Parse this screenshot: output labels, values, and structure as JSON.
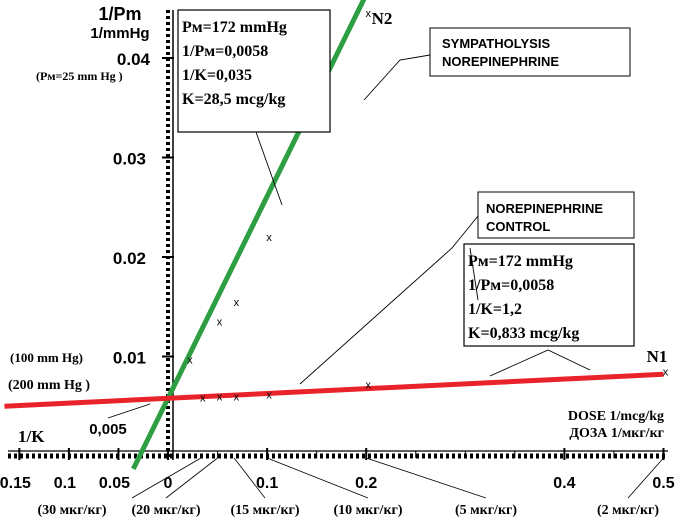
{
  "chart_data": {
    "type": "line",
    "title": "",
    "ylabel": "1/Pm",
    "ylabel_unit": "1/mmHg",
    "xlabel": "1/K",
    "xlabel_right": [
      "DOSE 1/mcg/kg",
      "ДОЗА 1/мкг/кг"
    ],
    "xlim": [
      -0.15,
      0.5
    ],
    "ylim": [
      0,
      0.045
    ],
    "x_ticks": [
      {
        "value": -0.15,
        "label": "0.15"
      },
      {
        "value": -0.1,
        "label": "0.1"
      },
      {
        "value": -0.05,
        "label": "0.05"
      },
      {
        "value": 0,
        "label": "0"
      },
      {
        "value": 0.1,
        "label": "0.1"
      },
      {
        "value": 0.2,
        "label": "0.2"
      },
      {
        "value": 0.4,
        "label": "0.4"
      },
      {
        "value": 0.5,
        "label": "0.5"
      }
    ],
    "y_ticks": [
      {
        "value": 0.01,
        "label": "0.01"
      },
      {
        "value": 0.02,
        "label": "0.02"
      },
      {
        "value": 0.03,
        "label": "0.03"
      },
      {
        "value": 0.04,
        "label": "0.04"
      }
    ],
    "y_extra_labels": [
      {
        "value": 0.0058,
        "label": "0,005"
      },
      {
        "value": 0.04,
        "label": "(Pм=25 mm Hg )"
      },
      {
        "value": 0.01,
        "label": "(100 mm Hg)"
      },
      {
        "value": 0.005,
        "label": "(200 mm Hg )"
      }
    ],
    "dose_labels": [
      {
        "x": 0.0333,
        "label": "(30 мкг/кг)"
      },
      {
        "x": 0.05,
        "label": "(20 мкг/кг)"
      },
      {
        "x": 0.0667,
        "label": "(15 мкг/кг)"
      },
      {
        "x": 0.1,
        "label": "(10 мкг/кг)"
      },
      {
        "x": 0.2,
        "label": "(5 мкг/кг)"
      },
      {
        "x": 0.5,
        "label": "(2 мкг/кг)"
      }
    ],
    "series": [
      {
        "name": "N2",
        "label": [
          "SYMPATHOLYSIS",
          "NOREPINEPHRINE"
        ],
        "color": "#2e9e43",
        "x_range": [
          -0.035,
          0.24
        ],
        "intercept": 0.0058,
        "slope": 0.2029,
        "points": [
          {
            "x": 0.02,
            "y": 0.0097
          },
          {
            "x": 0.05,
            "y": 0.0135
          },
          {
            "x": 0.067,
            "y": 0.0155
          },
          {
            "x": 0.1,
            "y": 0.022
          },
          {
            "x": 0.2,
            "y": 0.0445
          }
        ],
        "info": [
          "Pм=172  mmHg",
          "1/Pм=0,0058",
          "1/K=0,035",
          "K=28,5 mcg/kg"
        ]
      },
      {
        "name": "N1",
        "label": [
          "NOREPINEPHRINE",
          "CONTROL"
        ],
        "color": "#e8232a",
        "x_range": [
          -0.165,
          0.5
        ],
        "intercept": 0.0058,
        "slope": 0.00483,
        "points": [
          {
            "x": 0.033,
            "y": 0.0059
          },
          {
            "x": 0.05,
            "y": 0.006
          },
          {
            "x": 0.067,
            "y": 0.006
          },
          {
            "x": 0.1,
            "y": 0.0062
          },
          {
            "x": 0.2,
            "y": 0.0072
          },
          {
            "x": 0.5,
            "y": 0.0085
          }
        ],
        "info": [
          "Pм=172  mmHg",
          "1/Pм=0,0058",
          "1/K=1,2",
          "K=0,833 mcg/kg"
        ]
      }
    ]
  }
}
